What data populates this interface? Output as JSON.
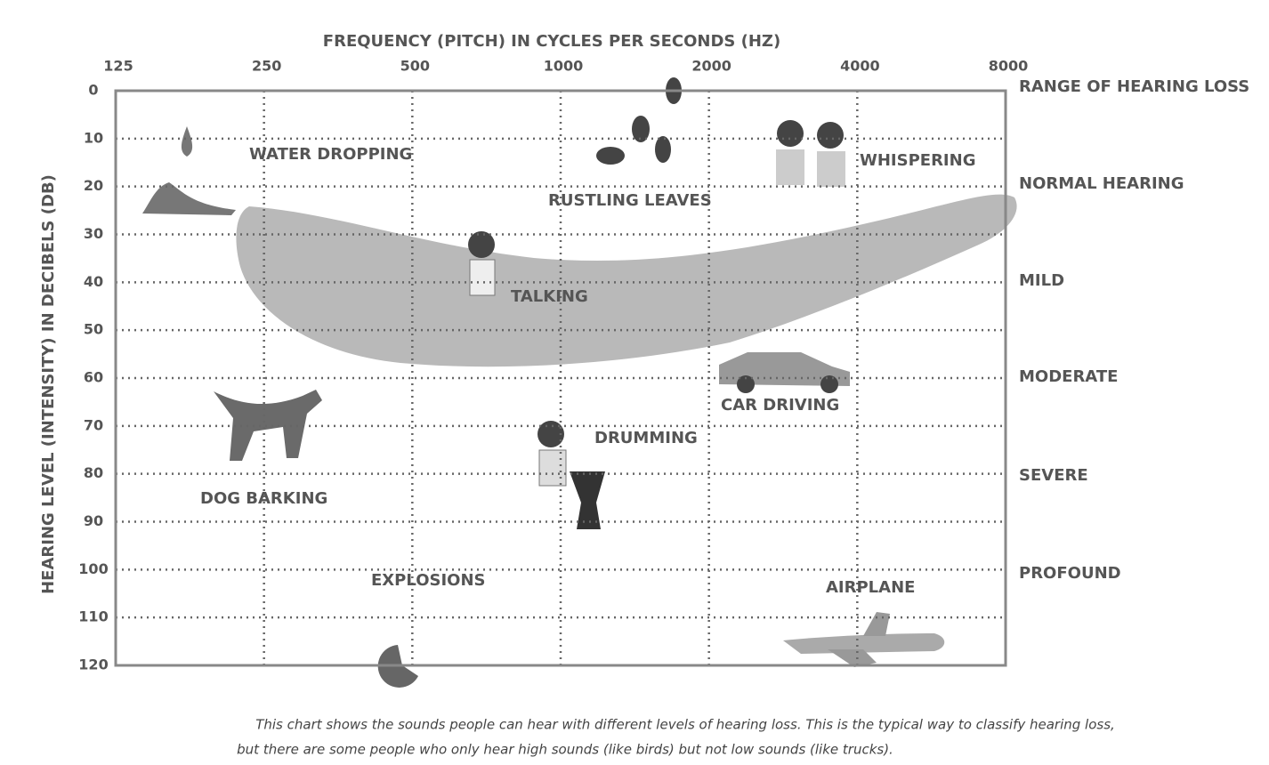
{
  "chart_data": {
    "type": "audiogram",
    "title": "FREQUENCY (PITCH)  IN CYCLES PER SECONDS (HZ)",
    "y_label": "HEARING LEVEL (INTENSITY) IN DECIBELS (DB)",
    "xscale": "log",
    "xlim": [
      125,
      8000
    ],
    "xticks": [
      125,
      250,
      500,
      1000,
      2000,
      4000,
      8000
    ],
    "ylim": [
      0,
      120
    ],
    "y_inverted": true,
    "yticks": [
      0,
      10,
      20,
      30,
      40,
      50,
      60,
      70,
      80,
      90,
      100,
      110,
      120
    ],
    "grid": true,
    "ranges": [
      "RANGE OF HEARING LOSS",
      "NORMAL HEARING",
      "MILD",
      "MODERATE",
      "SEVERE",
      "PROFOUND"
    ],
    "annotations": [
      "WATER DROPPING",
      "RUSTLING LEAVES",
      "WHISPERING",
      "TALKING",
      "CAR DRIVING",
      "DRUMMING",
      "DOG BARKING",
      "EXPLOSIONS",
      "AIRPLANE"
    ],
    "caption": [
      "This chart shows the sounds people can hear with different levels of hearing loss. This is the typical way to classify hearing loss,",
      "but there are some people who only hear high sounds (like birds) but not low sounds (like trucks)."
    ]
  }
}
